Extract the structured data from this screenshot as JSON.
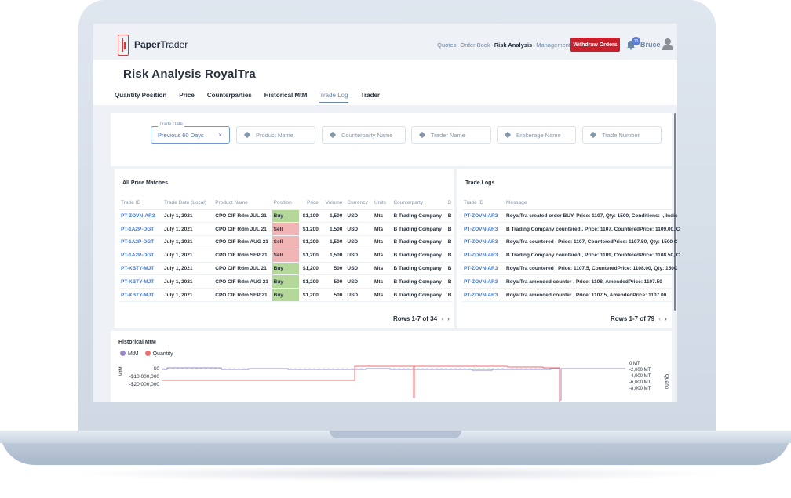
{
  "app": {
    "logo_bold": "Paper",
    "logo_light": "Trader"
  },
  "nav": {
    "items": [
      "Quotes",
      "Order Book",
      "Risk Analysis",
      "Management"
    ],
    "withdraw_label": "Withdraw Orders",
    "badge_count": "10",
    "user_name": "Bruce"
  },
  "page": {
    "title": "Risk Analysis RoyalTra",
    "tabs": [
      "Quantity Position",
      "Price",
      "Counterparties",
      "Historical MtM",
      "Trade Log",
      "Trader"
    ],
    "active_tab": "Trade Log"
  },
  "filters": {
    "date_legend": "Trade Date",
    "date_value": "Previous 60 Days",
    "clear_symbol": "×",
    "placeholders": [
      "Product Name",
      "Counterparty Name",
      "Trader Name",
      "Brokerage Name",
      "Trade Number"
    ]
  },
  "price_matches": {
    "title": "All Price Matches",
    "columns": [
      "Trade ID",
      "Trade Date (Local)",
      "Product Name",
      "Position",
      "Price",
      "Volume",
      "Currency",
      "Units",
      "Counterparty",
      "B"
    ],
    "rows": [
      [
        "PT-ZOVN-AR3",
        "July 1, 2021",
        "CPO CIF Rdm JUL 21",
        "Buy",
        "$1,109",
        "1,500",
        "USD",
        "Mts",
        "B Trading Company",
        "B"
      ],
      [
        "PT-1A2P-DGT",
        "July 1, 2021",
        "CPO CIF Rdm JUL 21",
        "Sell",
        "$1,200",
        "1,500",
        "USD",
        "Mts",
        "B Trading Company",
        "B"
      ],
      [
        "PT-1A2P-DGT",
        "July 1, 2021",
        "CPO CIF Rdm AUG 21",
        "Sell",
        "$1,200",
        "1,500",
        "USD",
        "Mts",
        "B Trading Company",
        "B"
      ],
      [
        "PT-1A2P-DGT",
        "July 1, 2021",
        "CPO CIF Rdm SEP 21",
        "Sell",
        "$1,200",
        "1,500",
        "USD",
        "Mts",
        "B Trading Company",
        "B"
      ],
      [
        "PT-XBTY-MJT",
        "July 1, 2021",
        "CPO CIF Rdm JUL 21",
        "Buy",
        "$1,200",
        "500",
        "USD",
        "Mts",
        "B Trading Company",
        "B"
      ],
      [
        "PT-XBTY-MJT",
        "July 1, 2021",
        "CPO CIF Rdm AUG 21",
        "Buy",
        "$1,200",
        "500",
        "USD",
        "Mts",
        "B Trading Company",
        "B"
      ],
      [
        "PT-XBTY-MJT",
        "July 1, 2021",
        "CPO CIF Rdm SEP 21",
        "Buy",
        "$1,200",
        "500",
        "USD",
        "Mts",
        "B Trading Company",
        "B"
      ]
    ],
    "pager": "Rows 1-7 of 34",
    "prev": "‹",
    "next": "›"
  },
  "trade_logs": {
    "title": "Trade Logs",
    "columns": [
      "Trade ID",
      "Message"
    ],
    "rows": [
      [
        "PT-ZOVN-AR3",
        "RoyalTra created order BUY, Price: 1107, Qty: 1500, Conditions: -, Indic"
      ],
      [
        "PT-ZOVN-AR3",
        "B Trading Company countered , Price: 1107, CounteredPrice: 1109.00, C"
      ],
      [
        "PT-ZOVN-AR3",
        "RoyalTra countered , Price: 1107, CounteredPrice: 1107.50, Qty: 1500 C"
      ],
      [
        "PT-ZOVN-AR3",
        "B Trading Company countered , Price: 1109, CounteredPrice: 1108.50, C"
      ],
      [
        "PT-ZOVN-AR3",
        "RoyalTra countered , Price: 1107.5, CounteredPrice: 1108.00, Qty: 150C"
      ],
      [
        "PT-ZOVN-AR3",
        "RoyalTra amended counter , Price: 1108, AmendedPrice: 1107.50"
      ],
      [
        "PT-ZOVN-AR3",
        "RoyalTra amended counter , Price: 1107.5, AmendedPrice: 1107.00"
      ]
    ],
    "pager": "Rows 1-7 of 79",
    "prev": "‹",
    "next": "›"
  },
  "mtm": {
    "title": "Historical MtM",
    "legend": [
      "MtM",
      "Quantity"
    ],
    "left_ticks": [
      "$0",
      "-$10,000,000",
      "-$20,000,000"
    ],
    "right_ticks": [
      "0 MT",
      "-2,000 MT",
      "-4,000 MT",
      "-6,000 MT",
      "-8,000 MT"
    ],
    "left_axis": "MtM",
    "right_axis": "Quanti",
    "colors": {
      "mtm": "#9b87c7",
      "quantity": "#ef6f72"
    }
  },
  "colors": {
    "accent": "#6b86a8",
    "danger": "#c8202b",
    "link": "#3d7bd6",
    "buy": "#b4d89a",
    "sell": "#f1b5b5"
  }
}
